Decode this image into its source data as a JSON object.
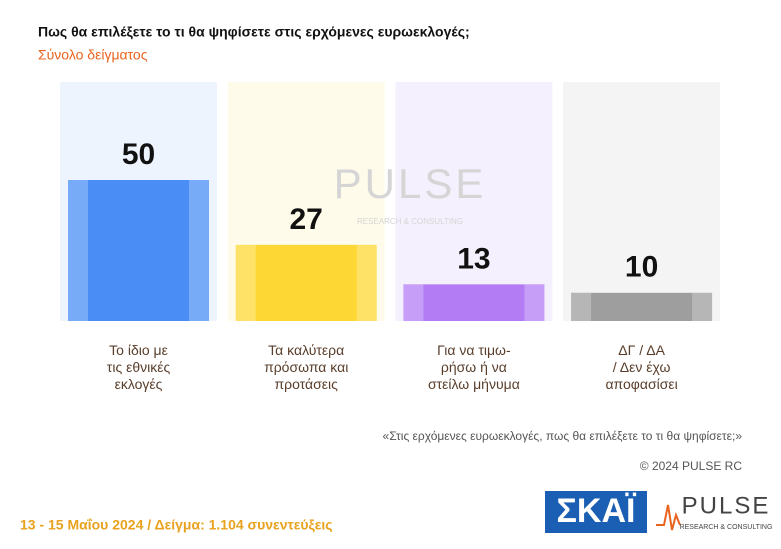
{
  "chart_data": {
    "type": "bar",
    "title": "Πως θα επιλέξετε το τι θα ψηφίσετε στις ερχόμενες ευρωεκλογές;",
    "subtitle": "Σύνολο δείγματος",
    "categories": [
      "Το ίδιο με\nτις εθνικές\nεκλογές",
      "Τα καλύτερα\nπρόσωπα και\nπροτάσεις",
      "Για να τιμω-\nρήσω ή να\nστείλω μήνυμα",
      "ΔΓ / ΔΑ\n/ Δεν έχω\nαποφασίσει"
    ],
    "values": [
      50,
      27,
      13,
      10
    ],
    "colors": [
      "#4a8ef5",
      "#fdd835",
      "#b37cf5",
      "#9e9e9e"
    ],
    "panel_colors": [
      "#eef4fd",
      "#fffbea",
      "#f5f0fd",
      "#f4f4f4"
    ]
  },
  "footnote": "«Στις ερχόμενες ευρωεκλογές, πως θα επιλέξετε το τι θα ψηφίσετε;»",
  "copyright": "© 2024 PULSE RC",
  "footer": "13 - 15  Μαΐου 2024  /  Δείγμα:  1.104 συνεντεύξεις",
  "watermark": {
    "name": "PULSE",
    "tagline": "RESEARCH & CONSULTING"
  },
  "logos": {
    "skai": "ΣΚΑΪ",
    "pulse": "PULSE",
    "pulse_tagline": "RESEARCH & CONSULTING"
  }
}
